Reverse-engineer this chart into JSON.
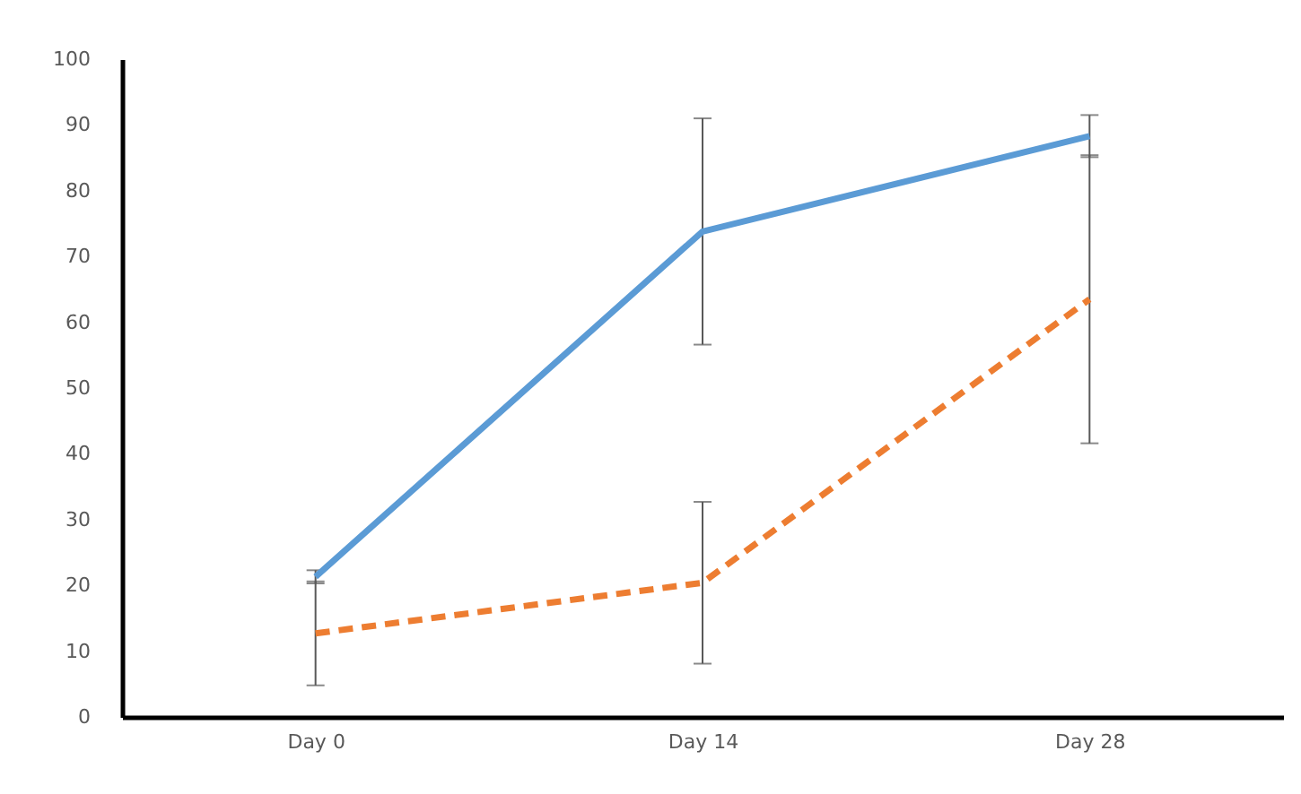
{
  "chart_data": {
    "type": "line",
    "categories": [
      "Day 0",
      "Day 14",
      "Day 28"
    ],
    "series": [
      {
        "color": "#5b9bd5",
        "line_style": "solid",
        "values": [
          21.3,
          73.8,
          88.3
        ],
        "errors": [
          1,
          17.2,
          3.2
        ]
      },
      {
        "color": "#ed7d31",
        "line_style": "dashed",
        "values": [
          12.7,
          20.4,
          63.5
        ],
        "errors": [
          7.9,
          12.3,
          21.9
        ]
      }
    ],
    "ylim": [
      0,
      100
    ],
    "yticks": [
      0,
      10,
      20,
      30,
      40,
      50,
      60,
      70,
      80,
      90,
      100
    ],
    "grid": false,
    "legend": false,
    "marker": "none"
  }
}
